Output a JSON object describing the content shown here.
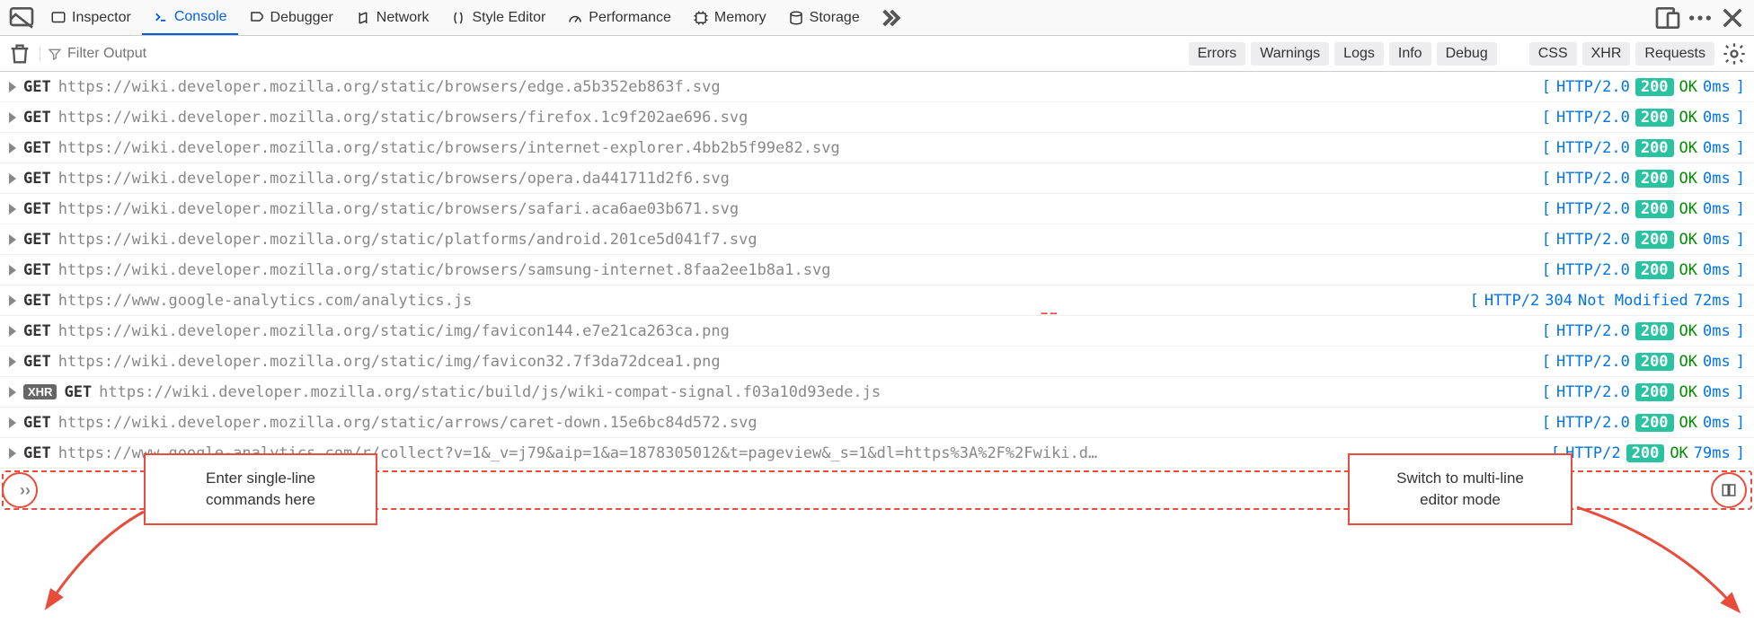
{
  "colors": {
    "accent_blue": "#0060df",
    "link_blue": "#0074e8",
    "green_ok": "#058b00",
    "status_green": "#2ac3a2",
    "annotation_red": "#e74c3c",
    "url_gray": "#888888",
    "toggle_bg": "#ededf0"
  },
  "toolbar": {
    "tabs": [
      {
        "label": "Inspector",
        "active": false
      },
      {
        "label": "Console",
        "active": true
      },
      {
        "label": "Debugger",
        "active": false
      },
      {
        "label": "Network",
        "active": false
      },
      {
        "label": "Style Editor",
        "active": false
      },
      {
        "label": "Performance",
        "active": false
      },
      {
        "label": "Memory",
        "active": false
      },
      {
        "label": "Storage",
        "active": false
      }
    ]
  },
  "filter": {
    "placeholder": "Filter Output",
    "toggles_left": [
      "Errors",
      "Warnings",
      "Logs",
      "Info",
      "Debug"
    ],
    "toggles_right": [
      "CSS",
      "XHR",
      "Requests"
    ]
  },
  "logs": [
    {
      "xhr": false,
      "method": "GET",
      "url": "https://wiki.developer.mozilla.org/static/browsers/edge.a5b352eb863f.svg",
      "proto": "HTTP/2.0",
      "status": 200,
      "status_text": "OK",
      "time": "0ms"
    },
    {
      "xhr": false,
      "method": "GET",
      "url": "https://wiki.developer.mozilla.org/static/browsers/firefox.1c9f202ae696.svg",
      "proto": "HTTP/2.0",
      "status": 200,
      "status_text": "OK",
      "time": "0ms"
    },
    {
      "xhr": false,
      "method": "GET",
      "url": "https://wiki.developer.mozilla.org/static/browsers/internet-explorer.4bb2b5f99e82.svg",
      "proto": "HTTP/2.0",
      "status": 200,
      "status_text": "OK",
      "time": "0ms"
    },
    {
      "xhr": false,
      "method": "GET",
      "url": "https://wiki.developer.mozilla.org/static/browsers/opera.da441711d2f6.svg",
      "proto": "HTTP/2.0",
      "status": 200,
      "status_text": "OK",
      "time": "0ms"
    },
    {
      "xhr": false,
      "method": "GET",
      "url": "https://wiki.developer.mozilla.org/static/browsers/safari.aca6ae03b671.svg",
      "proto": "HTTP/2.0",
      "status": 200,
      "status_text": "OK",
      "time": "0ms"
    },
    {
      "xhr": false,
      "method": "GET",
      "url": "https://wiki.developer.mozilla.org/static/platforms/android.201ce5d041f7.svg",
      "proto": "HTTP/2.0",
      "status": 200,
      "status_text": "OK",
      "time": "0ms"
    },
    {
      "xhr": false,
      "method": "GET",
      "url": "https://wiki.developer.mozilla.org/static/browsers/samsung-internet.8faa2ee1b8a1.svg",
      "proto": "HTTP/2.0",
      "status": 200,
      "status_text": "OK",
      "time": "0ms"
    },
    {
      "xhr": false,
      "method": "GET",
      "url": "https://www.google-analytics.com/analytics.js",
      "proto": "HTTP/2",
      "status": 304,
      "status_text": "Not Modified",
      "time": "72ms"
    },
    {
      "xhr": false,
      "method": "GET",
      "url": "https://wiki.developer.mozilla.org/static/img/favicon144.e7e21ca263ca.png",
      "proto": "HTTP/2.0",
      "status": 200,
      "status_text": "OK",
      "time": "0ms"
    },
    {
      "xhr": false,
      "method": "GET",
      "url": "https://wiki.developer.mozilla.org/static/img/favicon32.7f3da72dcea1.png",
      "proto": "HTTP/2.0",
      "status": 200,
      "status_text": "OK",
      "time": "0ms"
    },
    {
      "xhr": true,
      "method": "GET",
      "url": "https://wiki.developer.mozilla.org/static/build/js/wiki-compat-signal.f03a10d93ede.js",
      "proto": "HTTP/2.0",
      "status": 200,
      "status_text": "OK",
      "time": "0ms"
    },
    {
      "xhr": false,
      "method": "GET",
      "url": "https://wiki.developer.mozilla.org/static/arrows/caret-down.15e6bc84d572.svg",
      "proto": "HTTP/2.0",
      "status": 200,
      "status_text": "OK",
      "time": "0ms"
    },
    {
      "xhr": false,
      "method": "GET",
      "url": "https://www.google-analytics.com/r/collect?v=1&_v=j79&aip=1&a=1878305012&t=pageview&_s=1&dl=https%3A%2F%2Fwiki.d…",
      "proto": "HTTP/2",
      "status": 200,
      "status_text": "OK",
      "time": "79ms"
    }
  ],
  "xhr_badge_label": "XHR",
  "callouts": {
    "left": "Enter single-line\ncommands here",
    "right": "Switch to multi-line\neditor mode"
  }
}
